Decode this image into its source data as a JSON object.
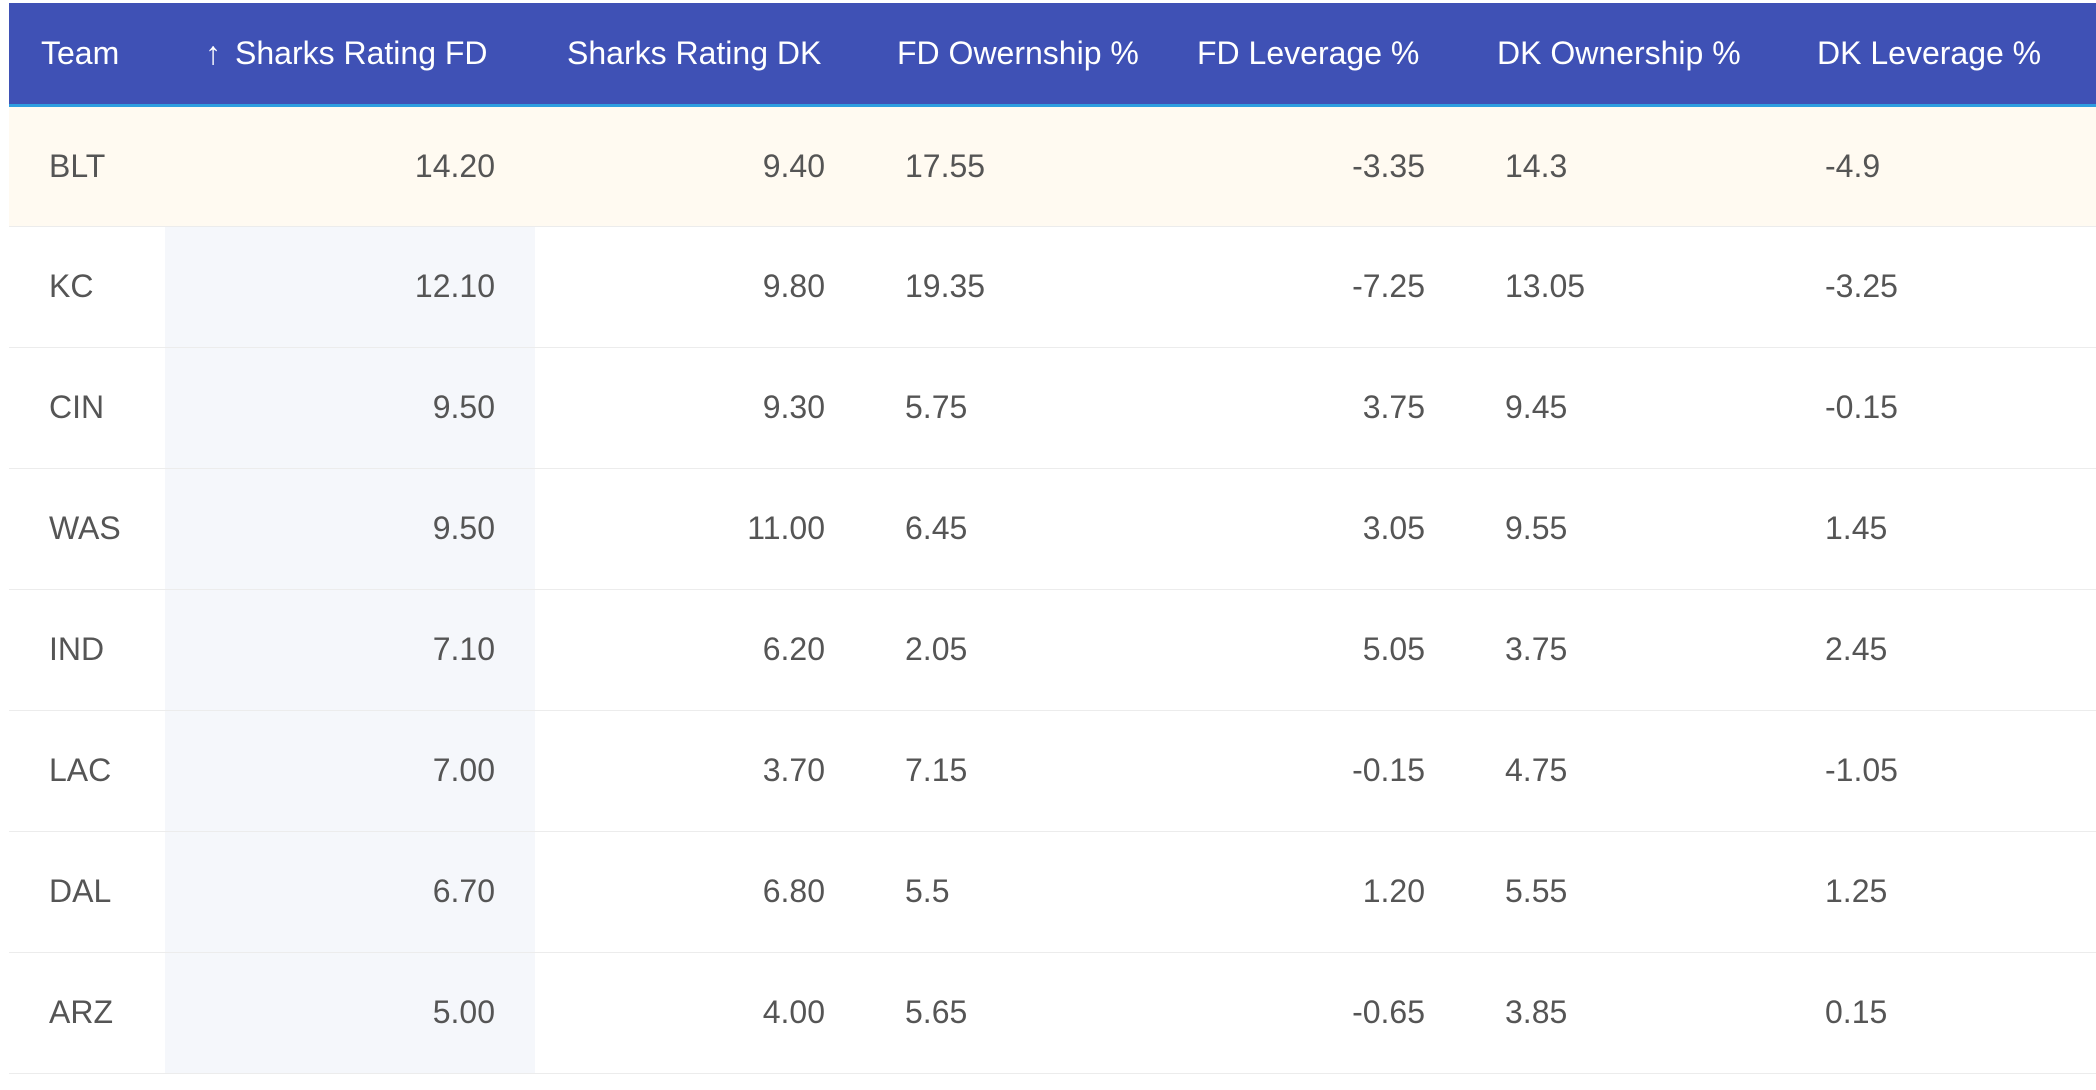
{
  "table": {
    "columns": [
      {
        "key": "team",
        "label": "Team"
      },
      {
        "key": "fd_rating",
        "label": "Sharks Rating FD",
        "sort_icon": "arrow-up-icon",
        "sort_glyph": "↑"
      },
      {
        "key": "dk_rating",
        "label": "Sharks Rating DK"
      },
      {
        "key": "fd_own",
        "label": "FD Owernship %"
      },
      {
        "key": "fd_lev",
        "label": "FD Leverage %"
      },
      {
        "key": "dk_own",
        "label": "DK Ownership %"
      },
      {
        "key": "dk_lev",
        "label": "DK Leverage %"
      }
    ],
    "rows": [
      [
        "BLT",
        "14.20",
        "9.40",
        "17.55",
        "-3.35",
        "14.3",
        "-4.9"
      ],
      [
        "KC",
        "12.10",
        "9.80",
        "19.35",
        "-7.25",
        "13.05",
        "-3.25"
      ],
      [
        "CIN",
        "9.50",
        "9.30",
        "5.75",
        "3.75",
        "9.45",
        "-0.15"
      ],
      [
        "WAS",
        "9.50",
        "11.00",
        "6.45",
        "3.05",
        "9.55",
        "1.45"
      ],
      [
        "IND",
        "7.10",
        "6.20",
        "2.05",
        "5.05",
        "3.75",
        "2.45"
      ],
      [
        "LAC",
        "7.00",
        "3.70",
        "7.15",
        "-0.15",
        "4.75",
        "-1.05"
      ],
      [
        "DAL",
        "6.70",
        "6.80",
        "5.5",
        "1.20",
        "5.55",
        "1.25"
      ],
      [
        "ARZ",
        "5.00",
        "4.00",
        "5.65",
        "-0.65",
        "3.85",
        "0.15"
      ]
    ]
  },
  "colors": {
    "header_bg": "#3f51b5",
    "header_border": "#2f9ee0",
    "highlight_row": "#fffaf1",
    "sorted_column": "#f5f7fb"
  }
}
